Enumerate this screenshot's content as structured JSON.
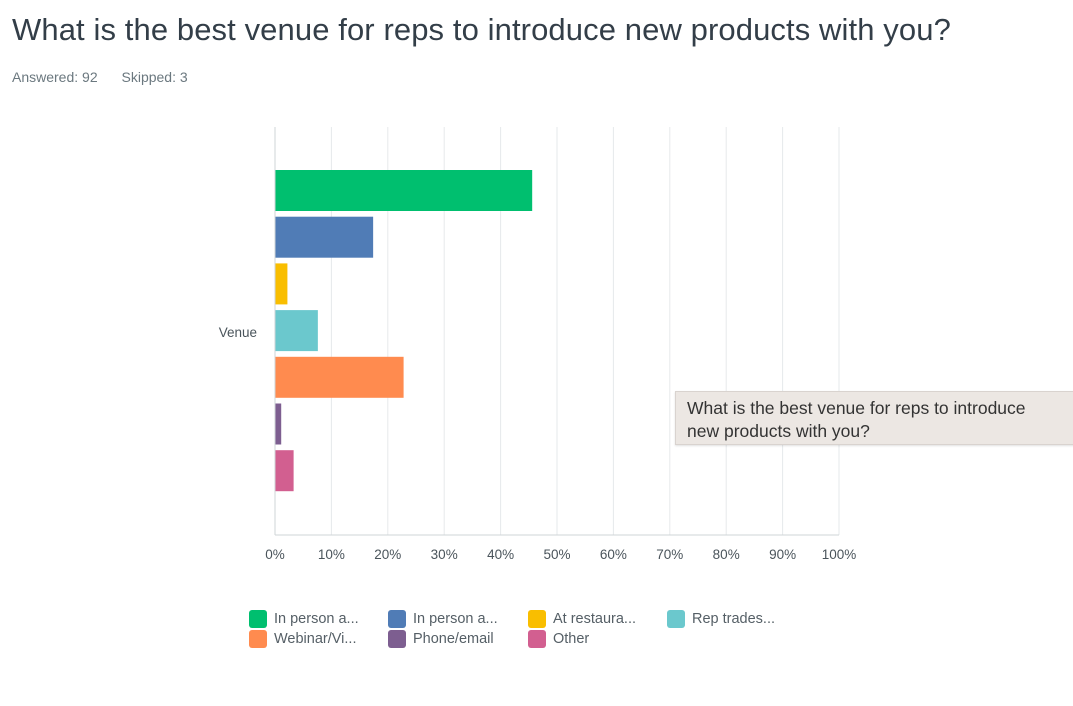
{
  "title": "What is the best venue for reps to introduce new products with you?",
  "stats": {
    "answered": "Answered: 92",
    "skipped": "Skipped: 3"
  },
  "tooltip": {
    "line1": "What is the best venue for reps to introduce",
    "line2": "new products with you?"
  },
  "chart_data": {
    "type": "bar",
    "orientation": "horizontal",
    "categories": [
      "Venue"
    ],
    "series": [
      {
        "name": "In person a...",
        "values": [
          45.6
        ],
        "color": "#00bf6f"
      },
      {
        "name": "In person a...",
        "values": [
          17.4
        ],
        "color": "#507cb6"
      },
      {
        "name": "At restaura...",
        "values": [
          2.2
        ],
        "color": "#f9be00"
      },
      {
        "name": "Rep trades...",
        "values": [
          7.6
        ],
        "color": "#6bc8cd"
      },
      {
        "name": "Webinar/Vi...",
        "values": [
          22.8
        ],
        "color": "#ff8b4f"
      },
      {
        "name": "Phone/email",
        "values": [
          1.1
        ],
        "color": "#7d5e90"
      },
      {
        "name": "Other",
        "values": [
          3.3
        ],
        "color": "#d25f90"
      }
    ],
    "xlim": [
      0,
      100
    ],
    "xticks": [
      "0%",
      "10%",
      "20%",
      "30%",
      "40%",
      "50%",
      "60%",
      "70%",
      "80%",
      "90%",
      "100%"
    ],
    "grid": true,
    "legend_position": "bottom"
  }
}
